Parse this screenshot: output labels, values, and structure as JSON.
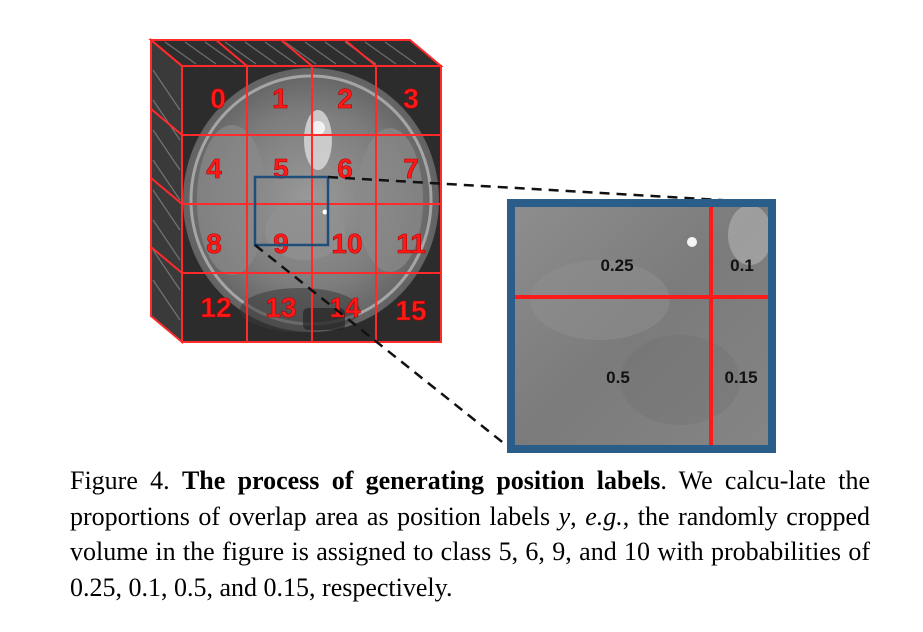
{
  "figure": {
    "grid_labels": [
      "0",
      "1",
      "2",
      "3",
      "4",
      "5",
      "6",
      "7",
      "8",
      "9",
      "10",
      "11",
      "12",
      "13",
      "14",
      "15"
    ],
    "zoom_labels": {
      "top_left": "0.25",
      "top_right": "0.1",
      "bottom_left": "0.5",
      "bottom_right": "0.15"
    },
    "colors": {
      "grid_line": "#ff2a2a",
      "crop_box": "#1f4e79",
      "zoom_frame": "#2a5d8a",
      "ct_background": "#7a7a7a"
    }
  },
  "caption": {
    "prefix": "Figure 4. ",
    "title": "The process of generating position labels",
    "part1": ". We calcu-late the proportions of overlap area as position labels ",
    "variable": "y",
    "part2": ", ",
    "eg": "e.g.",
    "part3": ", the randomly cropped volume in the figure is assigned to class 5, 6, 9, and 10 with probabilities of 0.25, 0.1, 0.5, and 0.15, respectively."
  }
}
